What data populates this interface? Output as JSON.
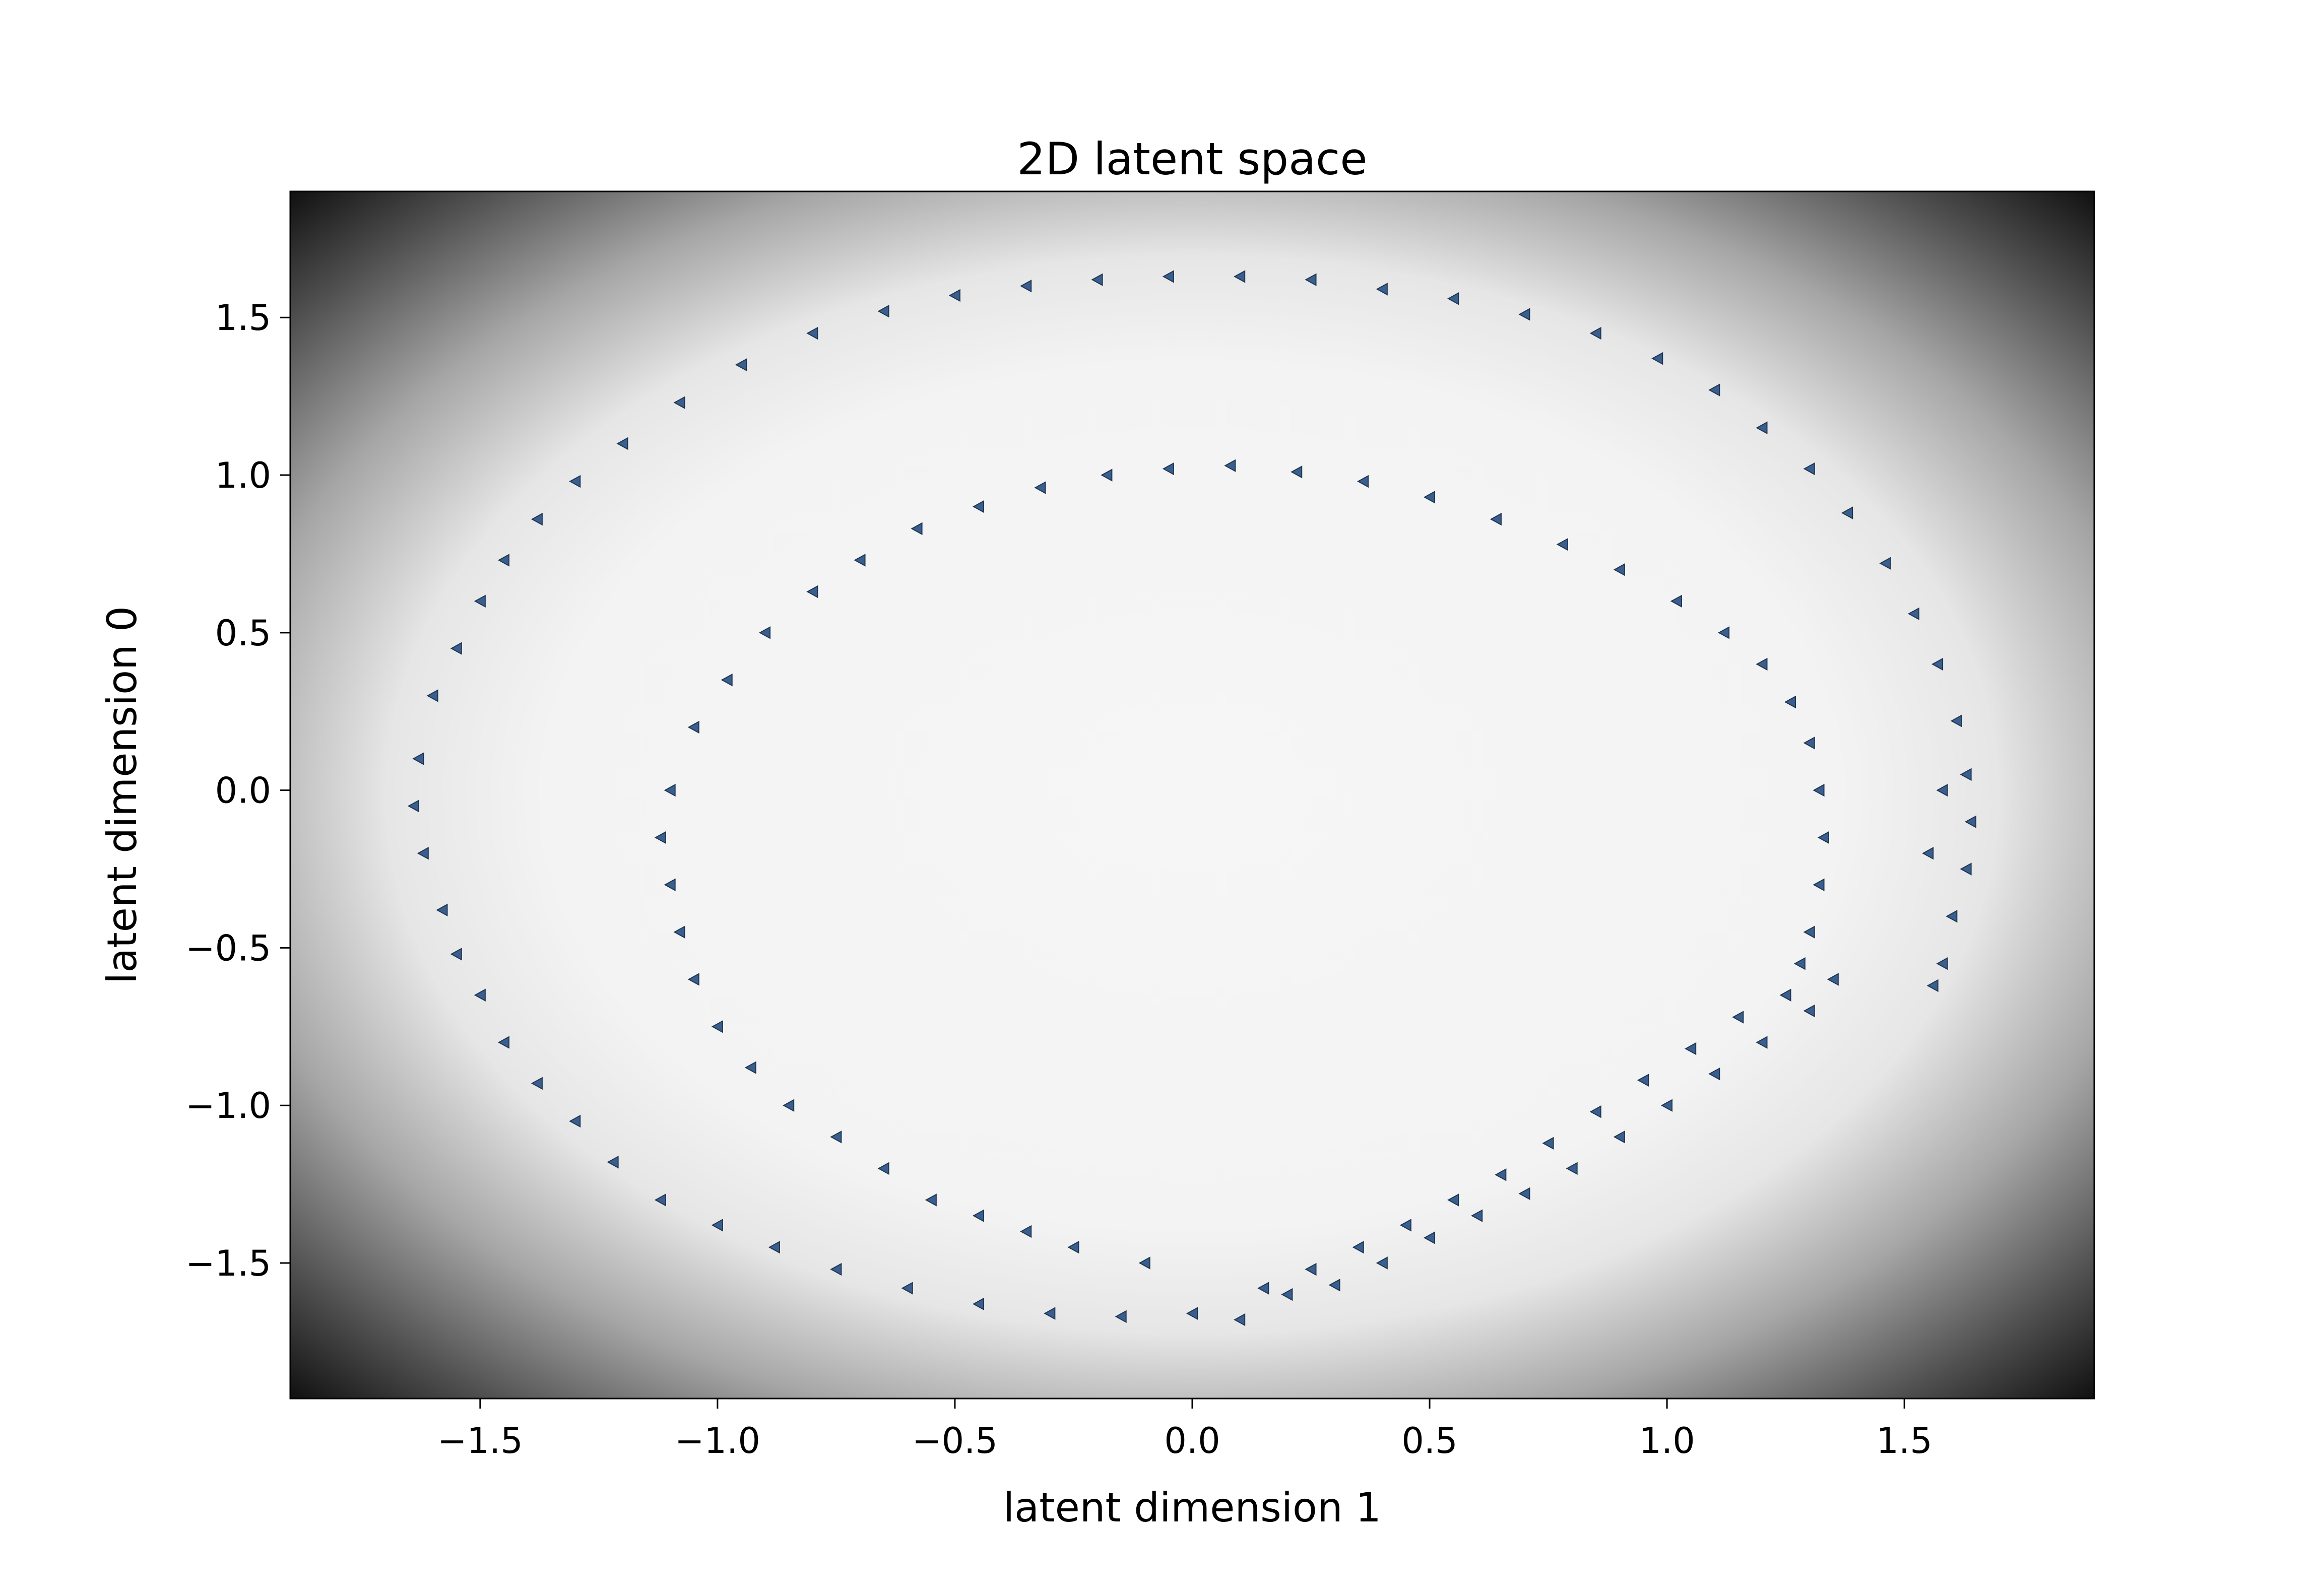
{
  "chart_data": {
    "type": "scatter",
    "title": "2D latent space",
    "xlabel": "latent dimension 1",
    "ylabel": "latent dimension 0",
    "xlim": [
      -1.9,
      1.9
    ],
    "ylim": [
      -1.93,
      1.9
    ],
    "xticks": [
      -1.5,
      -1.0,
      -0.5,
      0.0,
      0.5,
      1.0,
      1.5
    ],
    "xtick_labels": [
      "−1.5",
      "−1.0",
      "−0.5",
      "0.0",
      "0.5",
      "1.0",
      "1.5"
    ],
    "yticks": [
      -1.5,
      -1.0,
      -0.5,
      0.0,
      0.5,
      1.0,
      1.5
    ],
    "ytick_labels": [
      "−1.5",
      "−1.0",
      "−0.5",
      "0.0",
      "0.5",
      "1.0",
      "1.5"
    ],
    "background": "grayscale density map: near-white inside the rings, darkening to black at the plot corners",
    "marker": "left-pointing triangle",
    "marker_color": "#3a5f8f",
    "marker_edge_color": "#1e3550",
    "grid": false,
    "legend": "none",
    "series": [
      {
        "points": [
          [
            -1.63,
            0.1
          ],
          [
            -1.64,
            -0.05
          ],
          [
            -1.62,
            -0.2
          ],
          [
            -1.58,
            -0.38
          ],
          [
            -1.55,
            -0.52
          ],
          [
            -1.5,
            -0.65
          ],
          [
            -1.45,
            -0.8
          ],
          [
            -1.38,
            -0.93
          ],
          [
            -1.3,
            -1.05
          ],
          [
            -1.22,
            -1.18
          ],
          [
            -1.12,
            -1.3
          ],
          [
            -1.0,
            -1.38
          ],
          [
            -0.88,
            -1.45
          ],
          [
            -0.75,
            -1.52
          ],
          [
            -0.6,
            -1.58
          ],
          [
            -0.45,
            -1.63
          ],
          [
            -0.3,
            -1.66
          ],
          [
            -0.15,
            -1.67
          ],
          [
            0.0,
            -1.66
          ],
          [
            0.1,
            -1.68
          ],
          [
            -1.6,
            0.3
          ],
          [
            -1.55,
            0.45
          ],
          [
            -1.5,
            0.6
          ],
          [
            -1.45,
            0.73
          ],
          [
            -1.38,
            0.86
          ],
          [
            -1.3,
            0.98
          ],
          [
            -1.2,
            1.1
          ],
          [
            -1.08,
            1.23
          ],
          [
            -0.95,
            1.35
          ],
          [
            -0.8,
            1.45
          ],
          [
            -0.65,
            1.52
          ],
          [
            -0.5,
            1.57
          ],
          [
            -0.35,
            1.6
          ],
          [
            -0.2,
            1.62
          ],
          [
            -0.05,
            1.63
          ],
          [
            0.1,
            1.63
          ],
          [
            0.25,
            1.62
          ],
          [
            0.4,
            1.59
          ],
          [
            0.55,
            1.56
          ],
          [
            0.7,
            1.51
          ],
          [
            0.85,
            1.45
          ],
          [
            0.98,
            1.37
          ],
          [
            1.1,
            1.27
          ],
          [
            1.2,
            1.15
          ],
          [
            1.3,
            1.02
          ],
          [
            1.38,
            0.88
          ],
          [
            1.46,
            0.72
          ],
          [
            1.52,
            0.56
          ],
          [
            1.57,
            0.4
          ],
          [
            1.61,
            0.22
          ],
          [
            1.63,
            0.05
          ],
          [
            1.64,
            -0.1
          ],
          [
            1.63,
            -0.25
          ],
          [
            1.6,
            -0.4
          ],
          [
            1.58,
            -0.55
          ],
          [
            1.56,
            -0.62
          ],
          [
            1.55,
            -0.2
          ],
          [
            1.58,
            0.0
          ],
          [
            1.35,
            -0.6
          ],
          [
            1.3,
            -0.7
          ],
          [
            1.2,
            -0.8
          ],
          [
            1.1,
            -0.9
          ],
          [
            1.0,
            -1.0
          ],
          [
            0.9,
            -1.1
          ],
          [
            0.8,
            -1.2
          ],
          [
            0.7,
            -1.28
          ],
          [
            0.6,
            -1.35
          ],
          [
            0.5,
            -1.42
          ],
          [
            0.4,
            -1.5
          ],
          [
            0.3,
            -1.57
          ],
          [
            0.2,
            -1.6
          ]
        ]
      },
      {
        "points": [
          [
            -1.1,
            0.0
          ],
          [
            -1.12,
            -0.15
          ],
          [
            -1.1,
            -0.3
          ],
          [
            -1.08,
            -0.45
          ],
          [
            -1.05,
            -0.6
          ],
          [
            -1.0,
            -0.75
          ],
          [
            -0.93,
            -0.88
          ],
          [
            -0.85,
            -1.0
          ],
          [
            -0.75,
            -1.1
          ],
          [
            -0.65,
            -1.2
          ],
          [
            -0.55,
            -1.3
          ],
          [
            -0.45,
            -1.35
          ],
          [
            -0.35,
            -1.4
          ],
          [
            -1.05,
            0.2
          ],
          [
            -0.98,
            0.35
          ],
          [
            -0.9,
            0.5
          ],
          [
            -0.8,
            0.63
          ],
          [
            -0.7,
            0.73
          ],
          [
            -0.58,
            0.83
          ],
          [
            -0.45,
            0.9
          ],
          [
            -0.32,
            0.96
          ],
          [
            -0.18,
            1.0
          ],
          [
            -0.05,
            1.02
          ],
          [
            0.08,
            1.03
          ],
          [
            0.22,
            1.01
          ],
          [
            0.36,
            0.98
          ],
          [
            0.5,
            0.93
          ],
          [
            0.64,
            0.86
          ],
          [
            0.78,
            0.78
          ],
          [
            0.9,
            0.7
          ],
          [
            1.02,
            0.6
          ],
          [
            1.12,
            0.5
          ],
          [
            1.2,
            0.4
          ],
          [
            1.26,
            0.28
          ],
          [
            1.3,
            0.15
          ],
          [
            1.32,
            0.0
          ],
          [
            1.33,
            -0.15
          ],
          [
            1.32,
            -0.3
          ],
          [
            1.3,
            -0.45
          ],
          [
            1.28,
            -0.55
          ],
          [
            1.25,
            -0.65
          ],
          [
            1.15,
            -0.72
          ],
          [
            1.05,
            -0.82
          ],
          [
            0.95,
            -0.92
          ],
          [
            0.85,
            -1.02
          ],
          [
            0.75,
            -1.12
          ],
          [
            0.65,
            -1.22
          ],
          [
            0.55,
            -1.3
          ],
          [
            0.45,
            -1.38
          ],
          [
            0.35,
            -1.45
          ],
          [
            0.25,
            -1.52
          ],
          [
            0.15,
            -1.58
          ],
          [
            -0.25,
            -1.45
          ],
          [
            -0.1,
            -1.5
          ]
        ]
      }
    ]
  }
}
